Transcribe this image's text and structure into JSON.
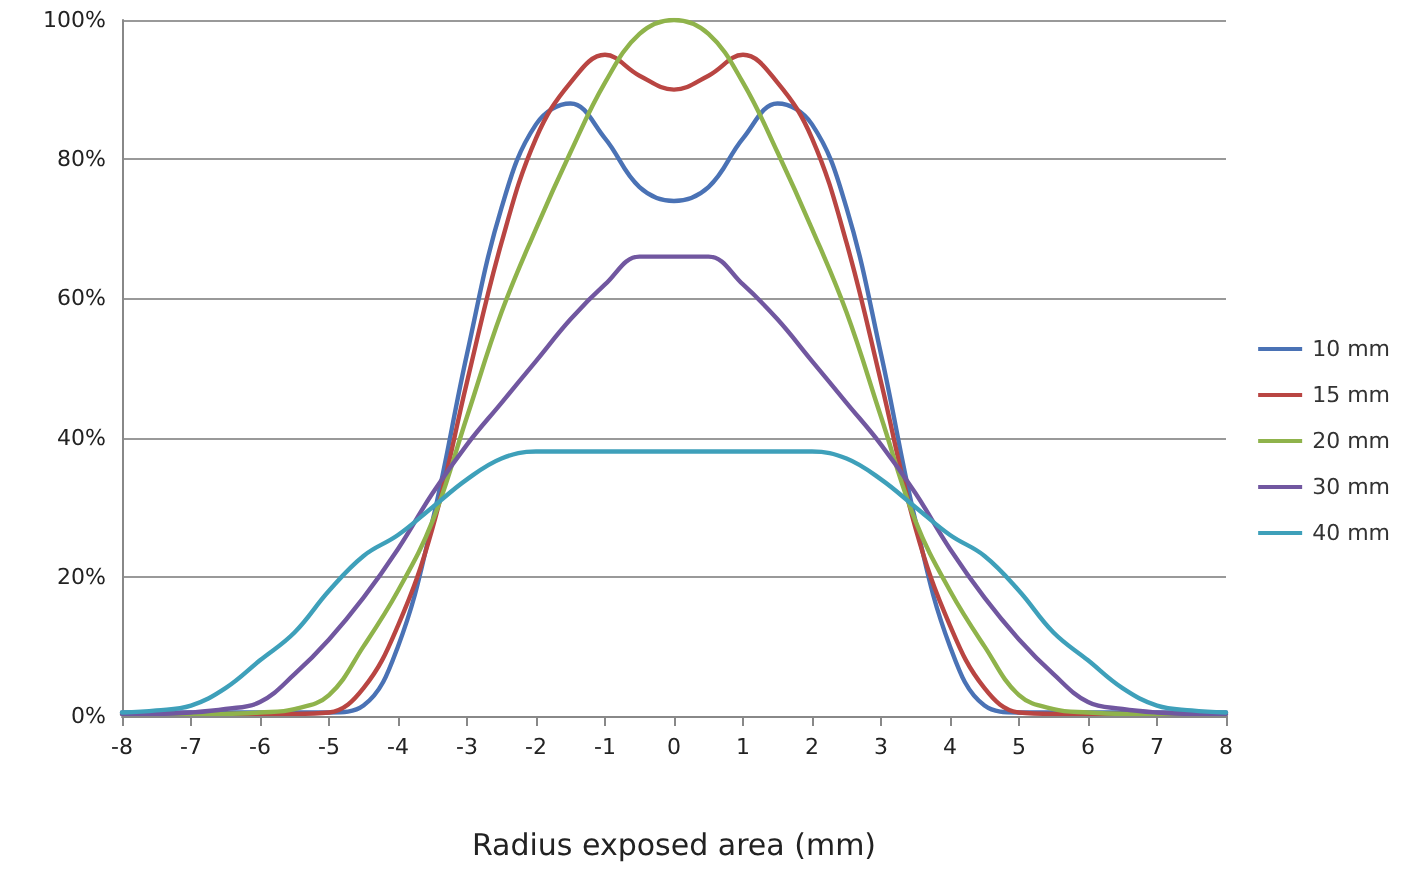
{
  "chart_data": {
    "type": "line",
    "xlabel": "Radius exposed area (mm)",
    "x": [
      -8,
      -7.5,
      -7,
      -6.5,
      -6,
      -5.5,
      -5,
      -4.5,
      -4,
      -3.5,
      -3,
      -2.5,
      -2,
      -1.5,
      -1,
      -0.5,
      0,
      0.5,
      1,
      1.5,
      2,
      2.5,
      3,
      3.5,
      4,
      4.5,
      5,
      5.5,
      6,
      6.5,
      7,
      7.5,
      8
    ],
    "series": [
      {
        "name": "10 mm",
        "color": "#4a72b5",
        "values": [
          0.5,
          0.5,
          0.5,
          0.5,
          0.5,
          0.5,
          0.5,
          1.5,
          10,
          28,
          52,
          73,
          85,
          88,
          83,
          76,
          74,
          76,
          83,
          88,
          85,
          73,
          52,
          28,
          10,
          1.5,
          0.5,
          0.5,
          0.5,
          0.5,
          0.5,
          0.5,
          0.5
        ]
      },
      {
        "name": "15 mm",
        "color": "#b94542",
        "values": [
          null,
          null,
          null,
          0.3,
          0.3,
          0.3,
          0.5,
          4,
          13,
          27,
          48,
          68,
          83,
          91,
          95,
          92,
          90,
          92,
          95,
          91,
          83,
          68,
          48,
          27,
          13,
          4,
          0.5,
          0.3,
          0.3,
          0.3,
          0.3,
          null,
          null
        ]
      },
      {
        "name": "20 mm",
        "color": "#8fb34b",
        "values": [
          0.3,
          0.3,
          0.3,
          0.3,
          0.5,
          1,
          3,
          10,
          18,
          28,
          43,
          58,
          70,
          81,
          91,
          98,
          100,
          98,
          91,
          81,
          70,
          58,
          43,
          28,
          18,
          10,
          3,
          1,
          0.5,
          0.3,
          0.3,
          0.3,
          0.3
        ]
      },
      {
        "name": "30 mm",
        "color": "#7157a0",
        "values": [
          0.3,
          0.3,
          0.5,
          1,
          2,
          6,
          11,
          17,
          24,
          32,
          39,
          45,
          51,
          57,
          62,
          66,
          66,
          66,
          62,
          57,
          51,
          45,
          39,
          32,
          24,
          17,
          11,
          6,
          2,
          1,
          0.5,
          0.3,
          0.3
        ]
      },
      {
        "name": "40 mm",
        "color": "#3ea0ba",
        "values": [
          0.5,
          0.8,
          1.5,
          4,
          8,
          12,
          18,
          23,
          26,
          30,
          34,
          37,
          38,
          38,
          38,
          38,
          38,
          38,
          38,
          38,
          38,
          37,
          34,
          30,
          26,
          23,
          18,
          12,
          8,
          4,
          1.5,
          0.8,
          0.5
        ]
      }
    ],
    "xlim": [
      -8,
      8
    ],
    "xticks": [
      -8,
      -7,
      -6,
      -5,
      -4,
      -3,
      -2,
      -1,
      0,
      1,
      2,
      3,
      4,
      5,
      6,
      7,
      8
    ],
    "ylim": [
      0,
      100
    ],
    "yticks": [
      {
        "value": 0,
        "label": "0%"
      },
      {
        "value": 20,
        "label": "20%"
      },
      {
        "value": 40,
        "label": "40%"
      },
      {
        "value": 60,
        "label": "60%"
      },
      {
        "value": 80,
        "label": "80%"
      },
      {
        "value": 100,
        "label": "100%"
      }
    ],
    "grid": "y",
    "legend": "right",
    "marker": "none",
    "line_style": "solid"
  }
}
